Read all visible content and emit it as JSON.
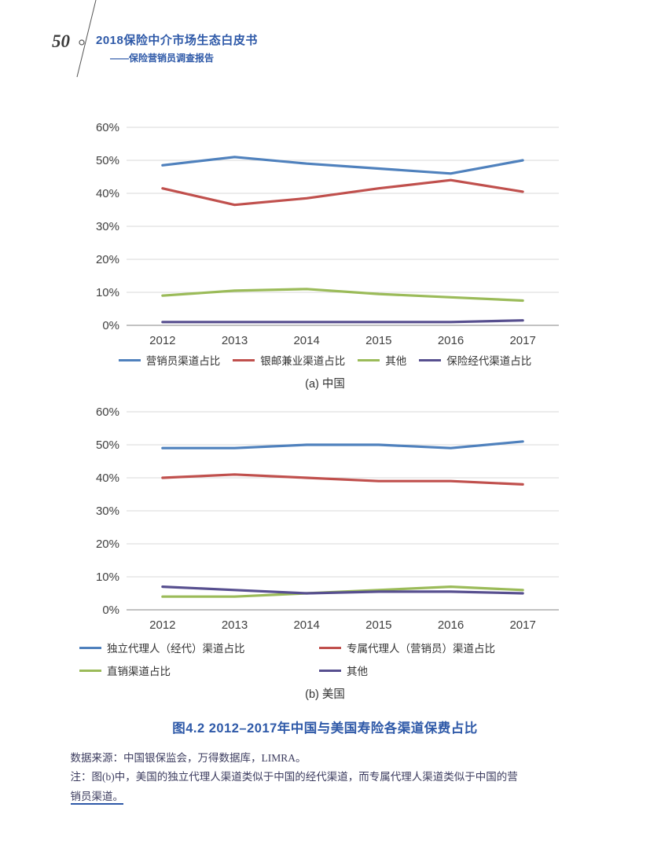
{
  "page": {
    "number": "50",
    "header": {
      "title": "2018保险中介市场生态白皮书",
      "subtitle": "——保险营销员调查报告"
    }
  },
  "colors": {
    "blue": "#4f81bd",
    "red": "#c0504d",
    "green": "#9bbb59",
    "purple": "#574f8f",
    "accent_blue": "#2e59a8",
    "grid": "#d9d9d9",
    "axis_text": "#3f3f3f"
  },
  "chart_data": [
    {
      "type": "line",
      "title": "(a) 中国",
      "x": [
        "2012",
        "2013",
        "2014",
        "2015",
        "2016",
        "2017"
      ],
      "ylim": [
        0,
        60
      ],
      "ytick_step": 10,
      "ytick_suffix": "%",
      "grid": true,
      "legend_position": "bottom",
      "series": [
        {
          "name": "营销员渠道占比",
          "color_key": "blue",
          "values": [
            48.5,
            51,
            49,
            47.5,
            46,
            50
          ]
        },
        {
          "name": "银邮兼业渠道占比",
          "color_key": "red",
          "values": [
            41.5,
            36.5,
            38.5,
            41.5,
            44,
            40.5
          ]
        },
        {
          "name": "其他",
          "color_key": "green",
          "values": [
            9,
            10.5,
            11,
            9.5,
            8.5,
            7.5
          ]
        },
        {
          "name": "保险经代渠道占比",
          "color_key": "purple",
          "values": [
            1,
            1,
            1,
            1,
            1,
            1.5
          ]
        }
      ]
    },
    {
      "type": "line",
      "title": "(b) 美国",
      "x": [
        "2012",
        "2013",
        "2014",
        "2015",
        "2016",
        "2017"
      ],
      "ylim": [
        0,
        60
      ],
      "ytick_step": 10,
      "ytick_suffix": "%",
      "grid": true,
      "legend_position": "bottom",
      "series": [
        {
          "name": "独立代理人（经代）渠道占比",
          "color_key": "blue",
          "values": [
            49,
            49,
            50,
            50,
            49,
            51
          ]
        },
        {
          "name": "专属代理人（营销员）渠道占比",
          "color_key": "red",
          "values": [
            40,
            41,
            40,
            39,
            39,
            38
          ]
        },
        {
          "name": "直销渠道占比",
          "color_key": "green",
          "values": [
            4,
            4,
            5,
            6,
            7,
            6
          ]
        },
        {
          "name": "其他",
          "color_key": "purple",
          "values": [
            7,
            6,
            5,
            5.5,
            5.5,
            5
          ]
        }
      ]
    }
  ],
  "figure_caption": "图4.2  2012–2017年中国与美国寿险各渠道保费占比",
  "notes": {
    "source": "数据来源：中国银保监会，万得数据库，LIMRA。",
    "note_line1": "注：图(b)中，美国的独立代理人渠道类似于中国的经代渠道，而专属代理人渠道类似于中国的营",
    "note_line2": "销员渠道。"
  }
}
